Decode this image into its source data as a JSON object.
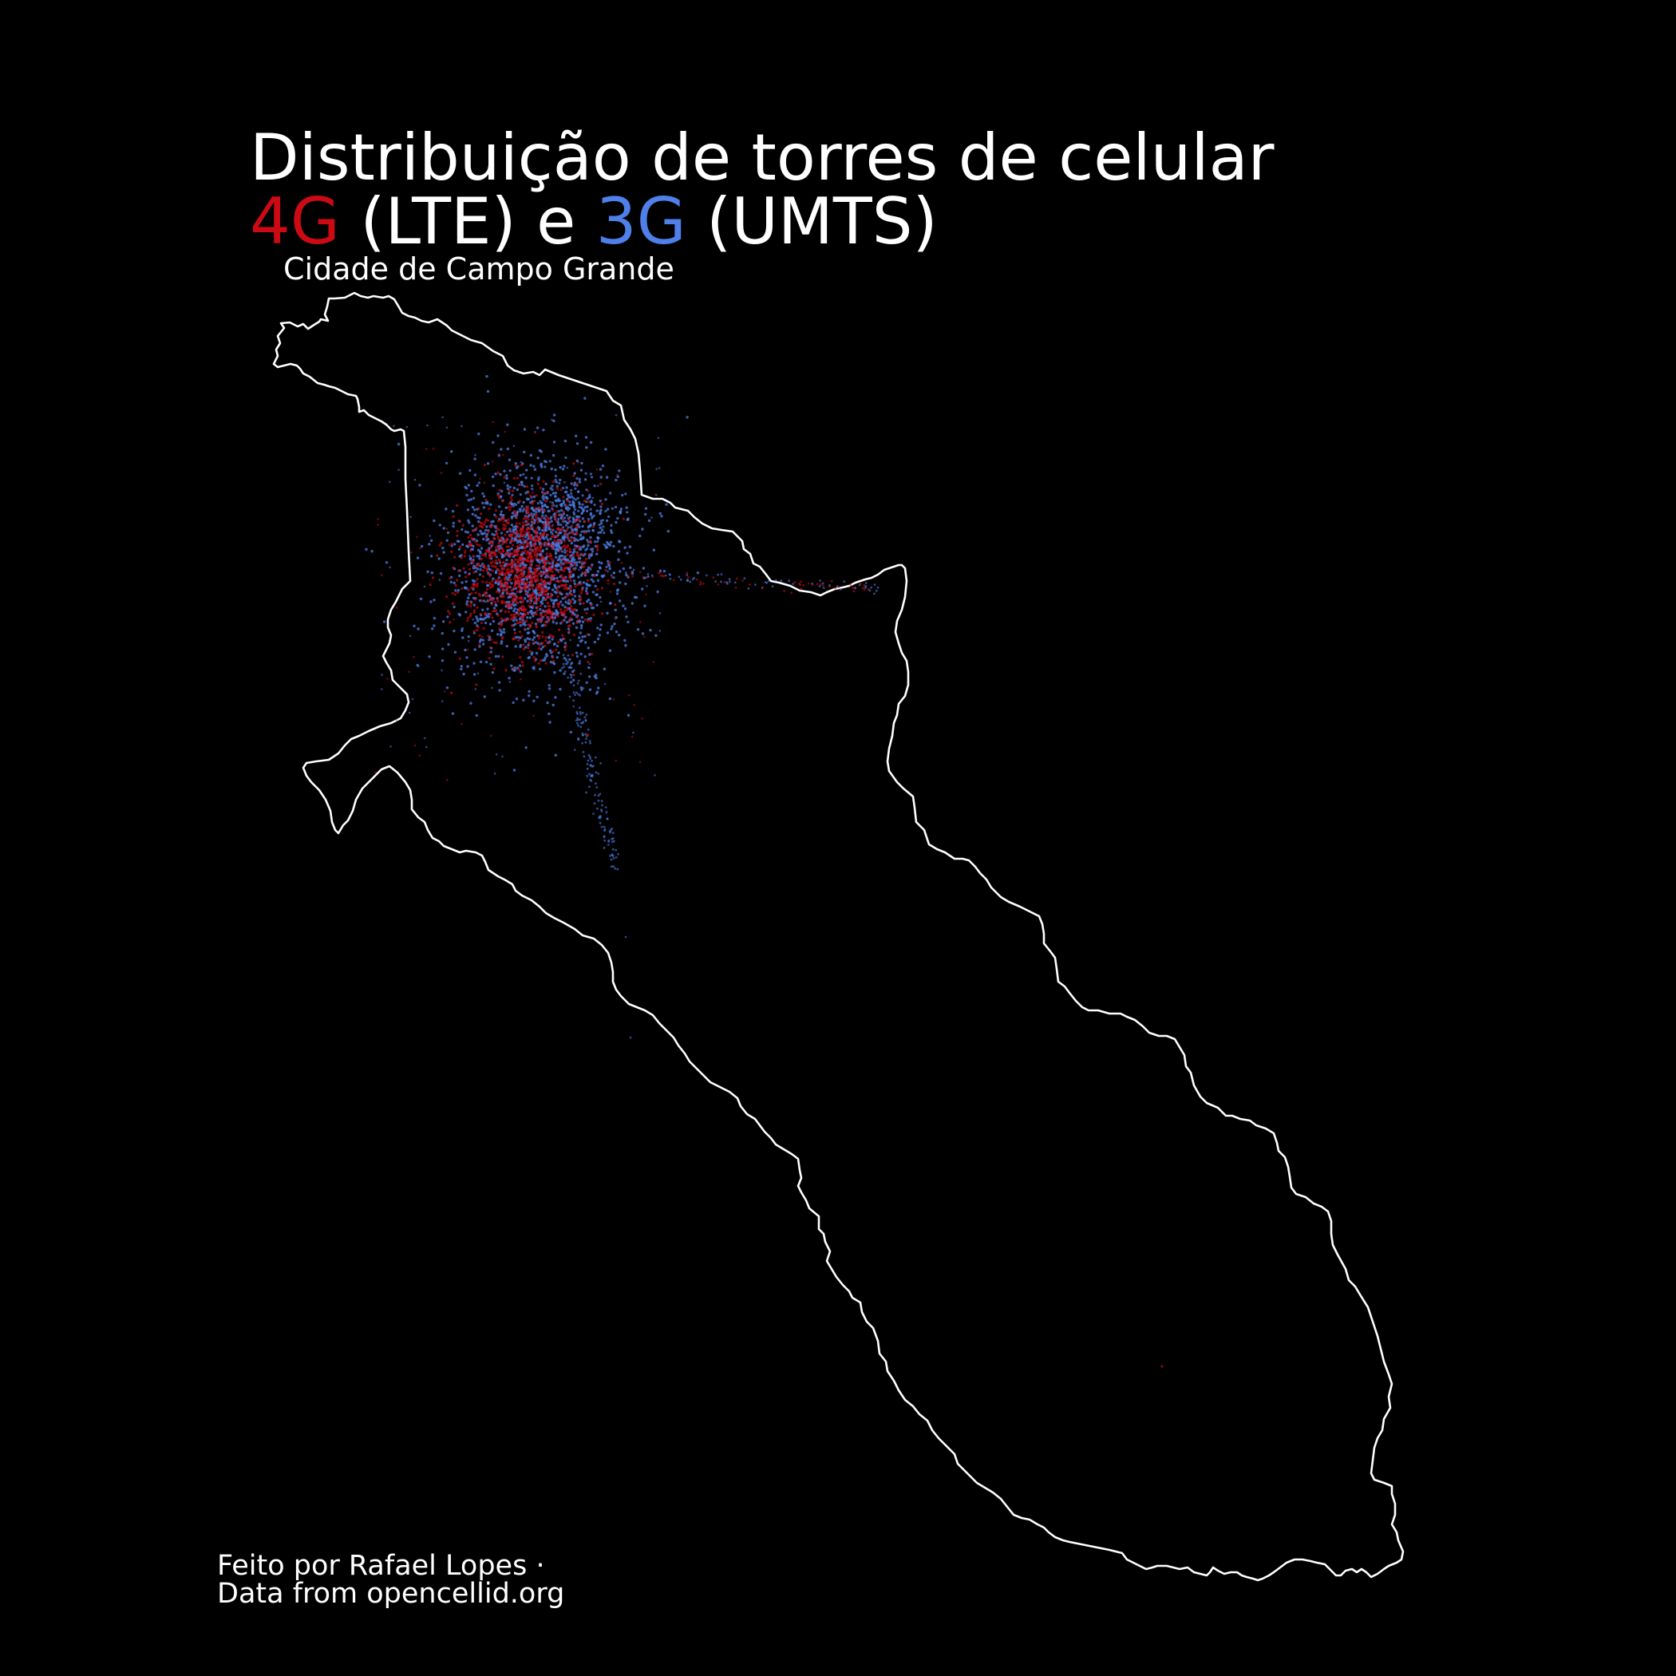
{
  "title": {
    "line1": "Distribuição de torres de celular",
    "line2": {
      "lte_tag": "4G",
      "lte_text": " (LTE) e ",
      "umts_tag": "3G",
      "umts_text": " (UMTS)"
    }
  },
  "subtitle": "Cidade de Campo Grande",
  "credits": {
    "line1": "Feito por Rafael Lopes ·",
    "line2": "Data from opencellid.org"
  },
  "colors": {
    "background": "#000000",
    "text": "#ffffff",
    "boundary": "#ffffff",
    "lte": "#cc0a14",
    "umts": "#4f7fe8"
  },
  "map": {
    "region": "Campo Grande",
    "boundary_color": "white",
    "layers": [
      {
        "name": "4G (LTE)",
        "color_key": "lte",
        "marker": "dot"
      },
      {
        "name": "3G (UMTS)",
        "color_key": "umts",
        "marker": "dot"
      }
    ],
    "towers_concentrated": "urban area in the north-west of the municipality"
  }
}
